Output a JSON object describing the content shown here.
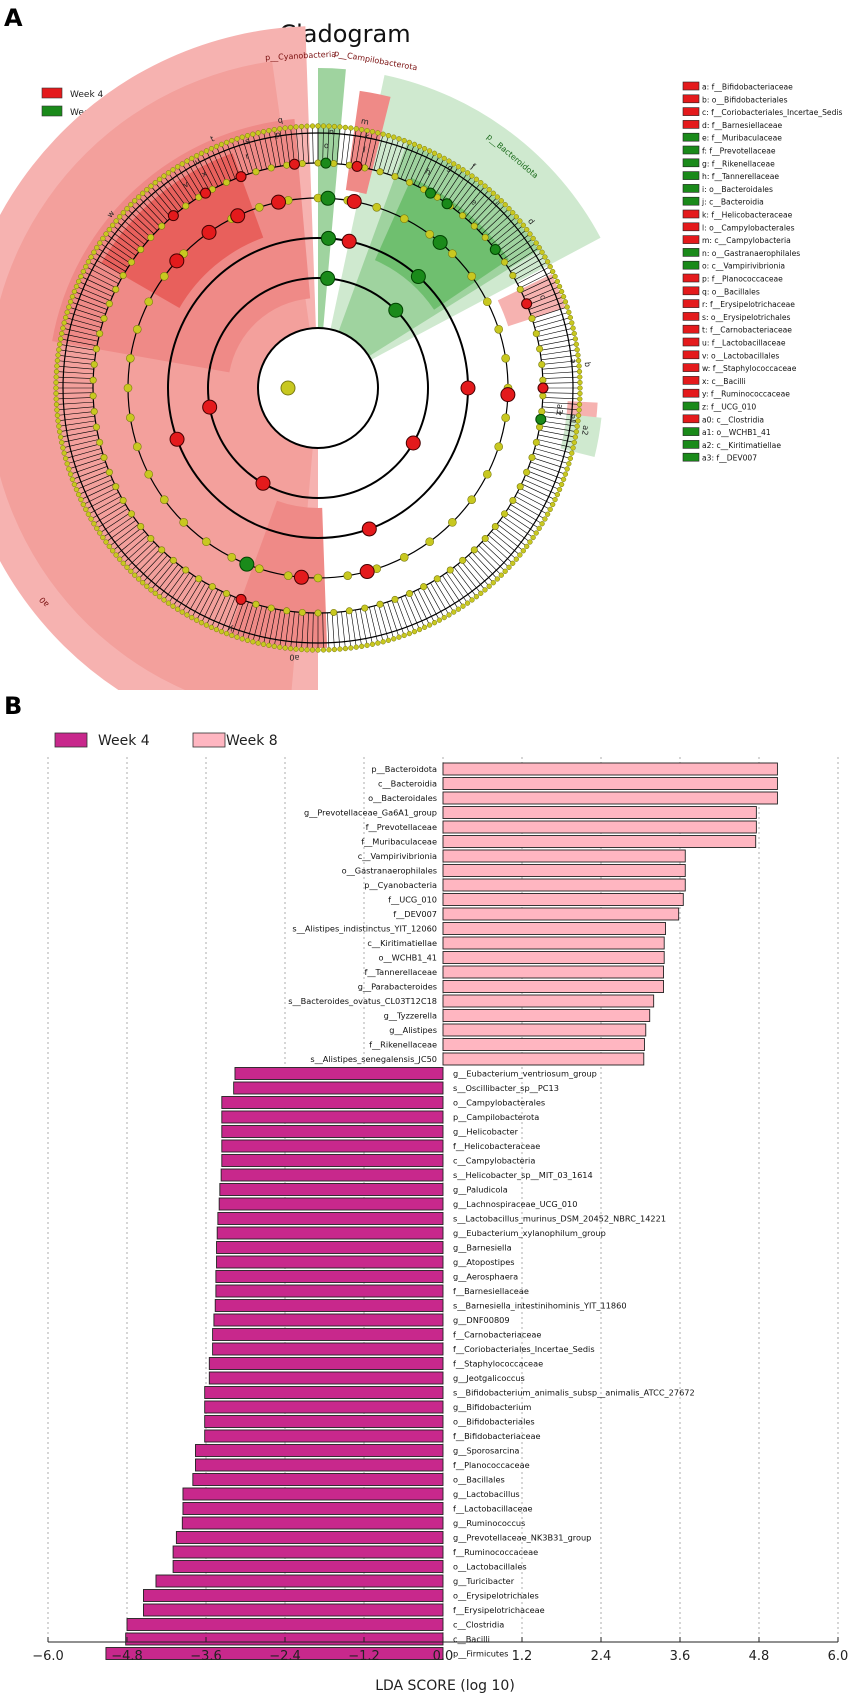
{
  "panel_a": {
    "label": "A",
    "title": "Cladogram",
    "legend": [
      {
        "name": "Week 4",
        "color": "#e41a1c"
      },
      {
        "name": "Week 8",
        "color": "#1a8a1a"
      }
    ],
    "colors": {
      "week4_light": "#f6b2b0",
      "week4_mid": "#ef8a87",
      "week4_dark": "#e8605c",
      "week8_light": "#cfe9cf",
      "week8_mid": "#9fd39f",
      "week8_dark": "#6fbf6f",
      "node": "#c8c820",
      "node_stroke": "#7a7a10"
    },
    "phylum_labels": [
      {
        "text": "p__Firmicutes",
        "angle": -90
      },
      {
        "text": "p__Bacteroidota",
        "angle": 40
      },
      {
        "text": "p__Cyanobacteria",
        "angle": -3
      },
      {
        "text": "p__Campilobacterota",
        "angle": 10
      },
      {
        "text": "a0",
        "angle": -128
      }
    ],
    "sector_letters": [
      {
        "text": "x",
        "angle": -28
      },
      {
        "text": "s",
        "angle": -16
      },
      {
        "text": "q",
        "angle": -8
      },
      {
        "text": "v",
        "angle": -33
      },
      {
        "text": "u",
        "angle": -28
      },
      {
        "text": "t",
        "angle": -23
      },
      {
        "text": "r",
        "angle": -17
      },
      {
        "text": "p",
        "angle": -9
      },
      {
        "text": "w",
        "angle": -50
      },
      {
        "text": "o",
        "angle": 2
      },
      {
        "text": "n",
        "angle": 3
      },
      {
        "text": "m",
        "angle": 10
      },
      {
        "text": "l",
        "angle": 11
      },
      {
        "text": "k",
        "angle": 11
      },
      {
        "text": "j",
        "angle": 35
      },
      {
        "text": "h",
        "angle": 27
      },
      {
        "text": "g",
        "angle": 31
      },
      {
        "text": "f",
        "angle": 35
      },
      {
        "text": "e",
        "angle": 40
      },
      {
        "text": "i",
        "angle": 44
      },
      {
        "text": "d",
        "angle": 52
      },
      {
        "text": "c",
        "angle": 68
      },
      {
        "text": "a",
        "angle": 84
      },
      {
        "text": "b",
        "angle": 85
      },
      {
        "text": "a3",
        "angle": 95
      },
      {
        "text": "a1",
        "angle": 97
      },
      {
        "text": "a2",
        "angle": 99
      },
      {
        "text": "z",
        "angle": 96
      },
      {
        "text": "y",
        "angle": -160
      },
      {
        "text": "a0",
        "angle": -175
      }
    ],
    "key": [
      {
        "label": "a: f__Bifidobacteriaceae",
        "group": "Week 4"
      },
      {
        "label": "b: o__Bifidobacteriales",
        "group": "Week 4"
      },
      {
        "label": "c: f__Coriobacteriales_Incertae_Sedis",
        "group": "Week 4"
      },
      {
        "label": "d: f__Barnesiellaceae",
        "group": "Week 4"
      },
      {
        "label": "e: f__Muribaculaceae",
        "group": "Week 8"
      },
      {
        "label": "f: f__Prevotellaceae",
        "group": "Week 8"
      },
      {
        "label": "g: f__Rikenellaceae",
        "group": "Week 8"
      },
      {
        "label": "h: f__Tannerellaceae",
        "group": "Week 8"
      },
      {
        "label": "i: o__Bacteroidales",
        "group": "Week 8"
      },
      {
        "label": "j: c__Bacteroidia",
        "group": "Week 8"
      },
      {
        "label": "k: f__Helicobacteraceae",
        "group": "Week 4"
      },
      {
        "label": "l: o__Campylobacterales",
        "group": "Week 4"
      },
      {
        "label": "m: c__Campylobacteria",
        "group": "Week 4"
      },
      {
        "label": "n: o__Gastranaerophilales",
        "group": "Week 8"
      },
      {
        "label": "o: c__Vampirivibrionia",
        "group": "Week 8"
      },
      {
        "label": "p: f__Planococcaceae",
        "group": "Week 4"
      },
      {
        "label": "q: o__Bacillales",
        "group": "Week 4"
      },
      {
        "label": "r: f__Erysipelotrichaceae",
        "group": "Week 4"
      },
      {
        "label": "s: o__Erysipelotrichales",
        "group": "Week 4"
      },
      {
        "label": "t: f__Carnobacteriaceae",
        "group": "Week 4"
      },
      {
        "label": "u: f__Lactobacillaceae",
        "group": "Week 4"
      },
      {
        "label": "v: o__Lactobacillales",
        "group": "Week 4"
      },
      {
        "label": "w: f__Staphylococcaceae",
        "group": "Week 4"
      },
      {
        "label": "x: c__Bacilli",
        "group": "Week 4"
      },
      {
        "label": "y: f__Ruminococcaceae",
        "group": "Week 4"
      },
      {
        "label": "z: f__UCG_010",
        "group": "Week 8"
      },
      {
        "label": "a0: c__Clostridia",
        "group": "Week 4"
      },
      {
        "label": "a1: o__WCHB1_41",
        "group": "Week 8"
      },
      {
        "label": "a2: c__Kiritimatiellae",
        "group": "Week 8"
      },
      {
        "label": "a3: f__DEV007",
        "group": "Week 8"
      }
    ]
  },
  "chart_data": {
    "type": "bar",
    "orientation": "horizontal",
    "panel_label": "B",
    "title": "",
    "xlabel": "LDA SCORE (log 10)",
    "ylabel": "",
    "xlim": [
      -6.0,
      6.0
    ],
    "xticks": [
      -6.0,
      -4.8,
      -3.6,
      -2.4,
      -1.2,
      0.0,
      1.2,
      2.4,
      3.6,
      4.8,
      6.0
    ],
    "xtick_labels": [
      "−6.0",
      "−4.8",
      "−3.6",
      "−2.4",
      "−1.2",
      "0.0",
      "1.2",
      "2.4",
      "3.6",
      "4.8",
      "6.0"
    ],
    "grid": "vertical dashed",
    "legend": [
      {
        "name": "Week 4",
        "color": "#c8288c"
      },
      {
        "name": "Week 8",
        "color": "#ffb6c1"
      }
    ],
    "series": [
      {
        "name": "Week 8",
        "color": "#ffb6c1",
        "bars": [
          {
            "label": "p__Bacteroidota",
            "value": 5.08
          },
          {
            "label": "c__Bacteroidia",
            "value": 5.08
          },
          {
            "label": "o__Bacteroidales",
            "value": 5.08
          },
          {
            "label": "g__Prevotellaceae_Ga6A1_group",
            "value": 4.76
          },
          {
            "label": "f__Prevotellaceae",
            "value": 4.76
          },
          {
            "label": "f__Muribaculaceae",
            "value": 4.75
          },
          {
            "label": "c__Vampirivibrionia",
            "value": 3.68
          },
          {
            "label": "o__Gastranaerophilales",
            "value": 3.68
          },
          {
            "label": "p__Cyanobacteria",
            "value": 3.68
          },
          {
            "label": "f__UCG_010",
            "value": 3.65
          },
          {
            "label": "f__DEV007",
            "value": 3.58
          },
          {
            "label": "s__Alistipes_indistinctus_YIT_12060",
            "value": 3.38
          },
          {
            "label": "c__Kiritimatiellae",
            "value": 3.36
          },
          {
            "label": "o__WCHB1_41",
            "value": 3.36
          },
          {
            "label": "f__Tannerellaceae",
            "value": 3.35
          },
          {
            "label": "g__Parabacteroides",
            "value": 3.35
          },
          {
            "label": "s__Bacteroides_ovatus_CL03T12C18",
            "value": 3.2
          },
          {
            "label": "g__Tyzzerella",
            "value": 3.14
          },
          {
            "label": "g__Alistipes",
            "value": 3.08
          },
          {
            "label": "f__Rikenellaceae",
            "value": 3.06
          },
          {
            "label": "s__Alistipes_senegalensis_JC50",
            "value": 3.05
          }
        ]
      },
      {
        "name": "Week 4",
        "color": "#c8288c",
        "bars": [
          {
            "label": "g__Eubacterium_ventriosum_group",
            "value": -3.16
          },
          {
            "label": "s__Oscillibacter_sp__PC13",
            "value": -3.18
          },
          {
            "label": "o__Campylobacterales",
            "value": -3.36
          },
          {
            "label": "p__Campilobacterota",
            "value": -3.36
          },
          {
            "label": "g__Helicobacter",
            "value": -3.36
          },
          {
            "label": "f__Helicobacteraceae",
            "value": -3.36
          },
          {
            "label": "c__Campylobacteria",
            "value": -3.36
          },
          {
            "label": "s__Helicobacter_sp__MIT_03_1614",
            "value": -3.37
          },
          {
            "label": "g__Paludicola",
            "value": -3.39
          },
          {
            "label": "g__Lachnospiraceae_UCG_010",
            "value": -3.4
          },
          {
            "label": "s__Lactobacillus_murinus_DSM_20452_NBRC_14221",
            "value": -3.42
          },
          {
            "label": "g__Eubacterium_xylanophilum_group",
            "value": -3.43
          },
          {
            "label": "g__Barnesiella",
            "value": -3.44
          },
          {
            "label": "g__Atopostipes",
            "value": -3.44
          },
          {
            "label": "g__Aerosphaera",
            "value": -3.45
          },
          {
            "label": "f__Barnesiellaceae",
            "value": -3.45
          },
          {
            "label": "s__Barnesiella_intestinihominis_YIT_11860",
            "value": -3.46
          },
          {
            "label": "g__DNF00809",
            "value": -3.48
          },
          {
            "label": "f__Carnobacteriaceae",
            "value": -3.5
          },
          {
            "label": "f__Coriobacteriales_Incertae_Sedis",
            "value": -3.5
          },
          {
            "label": "f__Staphylococcaceae",
            "value": -3.55
          },
          {
            "label": "g__Jeotgalicoccus",
            "value": -3.55
          },
          {
            "label": "s__Bifidobacterium_animalis_subsp__animalis_ATCC_27672",
            "value": -3.62
          },
          {
            "label": "g__Bifidobacterium",
            "value": -3.62
          },
          {
            "label": "o__Bifidobacteriales",
            "value": -3.62
          },
          {
            "label": "f__Bifidobacteriaceae",
            "value": -3.62
          },
          {
            "label": "g__Sporosarcina",
            "value": -3.76
          },
          {
            "label": "f__Planococcaceae",
            "value": -3.76
          },
          {
            "label": "o__Bacillales",
            "value": -3.8
          },
          {
            "label": "g__Lactobacillus",
            "value": -3.95
          },
          {
            "label": "f__Lactobacillaceae",
            "value": -3.95
          },
          {
            "label": "g__Ruminococcus",
            "value": -3.96
          },
          {
            "label": "g__Prevotellaceae_NK3B31_group",
            "value": -4.05
          },
          {
            "label": "f__Ruminococcaceae",
            "value": -4.1
          },
          {
            "label": "o__Lactobacillales",
            "value": -4.1
          },
          {
            "label": "g__Turicibacter",
            "value": -4.36
          },
          {
            "label": "o__Erysipelotrichales",
            "value": -4.55
          },
          {
            "label": "f__Erysipelotrichaceae",
            "value": -4.55
          },
          {
            "label": "c__Clostridia",
            "value": -4.8
          },
          {
            "label": "c__Bacilli",
            "value": -4.82
          },
          {
            "label": "p__Firmicutes",
            "value": -5.12
          }
        ]
      }
    ]
  }
}
